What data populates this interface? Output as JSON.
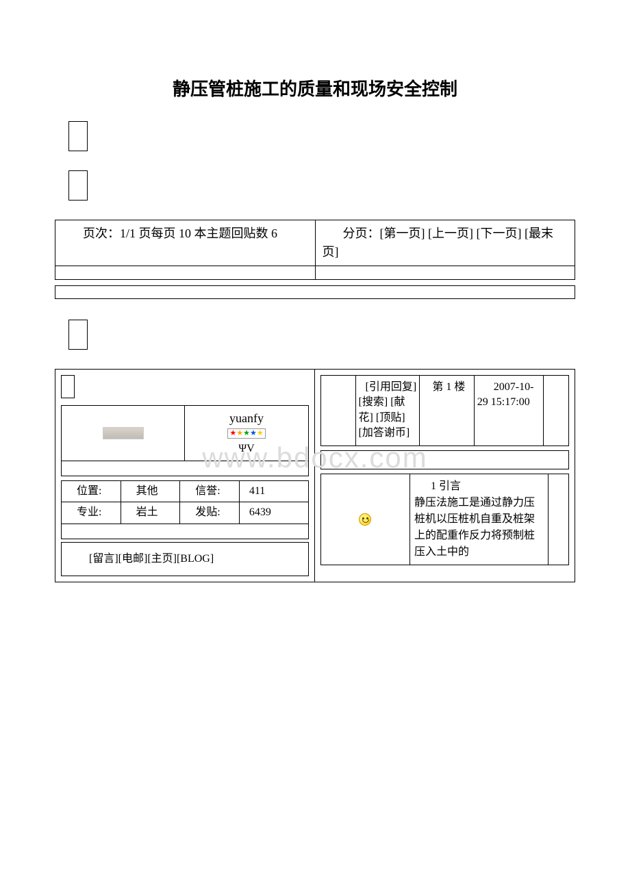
{
  "title": "静压管桩施工的质量和现场安全控制",
  "watermark": "www.bdocx.com",
  "pagination": {
    "left": "页次：1/1 页每页 10 本主题回贴数 6",
    "right": "分页：[第一页] [上一页] [下一页] [最末页]"
  },
  "user": {
    "name": "yuanfy",
    "symbol": "ΨV",
    "stars": [
      "red",
      "orange",
      "green",
      "blue",
      "yellow"
    ]
  },
  "info_rows": [
    {
      "k1": "位置:",
      "v1": "其他",
      "k2": "信誉:",
      "v2": "411"
    },
    {
      "k1": "专业:",
      "v1": "岩土",
      "k2": "发贴:",
      "v2": "6439"
    }
  ],
  "user_links": "[留言][电邮][主页][BLOG]",
  "post_meta": {
    "actions": "[引用回复] [搜索] [献花] [顶贴] [加答谢币]",
    "floor": "第 1 楼",
    "time": "2007-10-29 15:17:00"
  },
  "post_body": {
    "heading": "1 引言",
    "text": "静压法施工是通过静力压桩机以压桩机自重及桩架上的配重作反力将预制桩压入土中的"
  }
}
